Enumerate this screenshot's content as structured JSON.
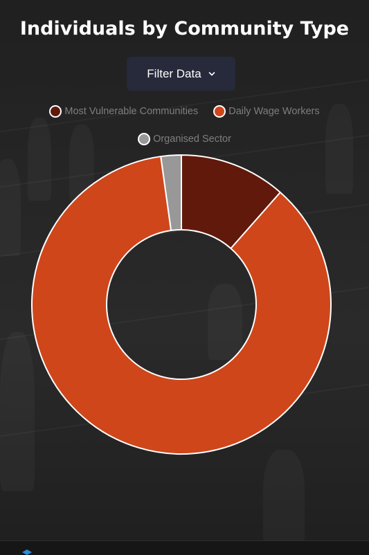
{
  "title": "Individuals by Community Type",
  "filter_button": {
    "label": "Filter Data",
    "icon": "chevron-down-icon"
  },
  "colors": {
    "background": "#1c1c1c",
    "button": "#262a3a",
    "slice_border": "#ffffff"
  },
  "chart_data": {
    "type": "pie",
    "variant": "doughnut",
    "legend_position": "top",
    "series": [
      {
        "name": "Most Vulnerable Communities",
        "value": 11.5,
        "color": "#61190c"
      },
      {
        "name": "Daily Wage Workers",
        "value": 86.3,
        "color": "#cf461b"
      },
      {
        "name": "Organised Sector",
        "value": 2.2,
        "color": "#989898"
      }
    ]
  }
}
